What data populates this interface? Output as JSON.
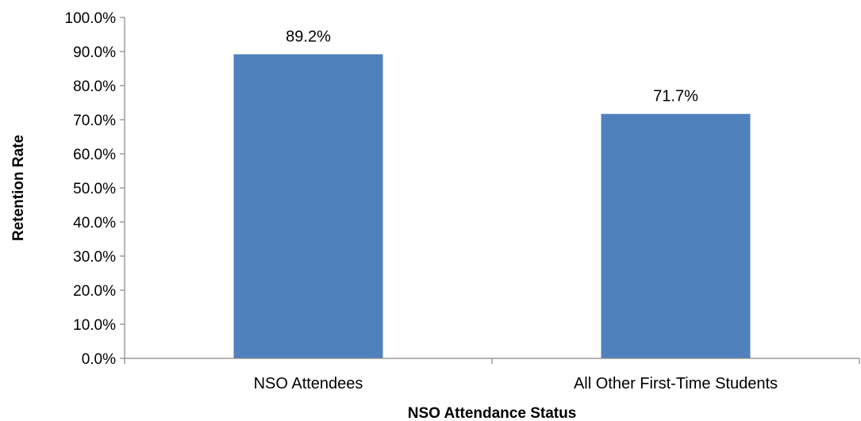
{
  "colors": {
    "bar": "#4f81bd",
    "axis": "#868686"
  },
  "chart_data": {
    "type": "bar",
    "categories": [
      "NSO Attendees",
      "All Other First-Time Students"
    ],
    "values": [
      89.2,
      71.7
    ],
    "data_labels": [
      "89.2%",
      "71.7%"
    ],
    "title": "",
    "xlabel": "NSO Attendance Status",
    "ylabel": "Retention Rate",
    "ylim": [
      0,
      100
    ],
    "yticks": [
      0,
      10,
      20,
      30,
      40,
      50,
      60,
      70,
      80,
      90,
      100
    ],
    "ytick_labels": [
      "0.0%",
      "10.0%",
      "20.0%",
      "30.0%",
      "40.0%",
      "50.0%",
      "60.0%",
      "70.0%",
      "80.0%",
      "90.0%",
      "100.0%"
    ],
    "grid": false,
    "legend": "none"
  }
}
